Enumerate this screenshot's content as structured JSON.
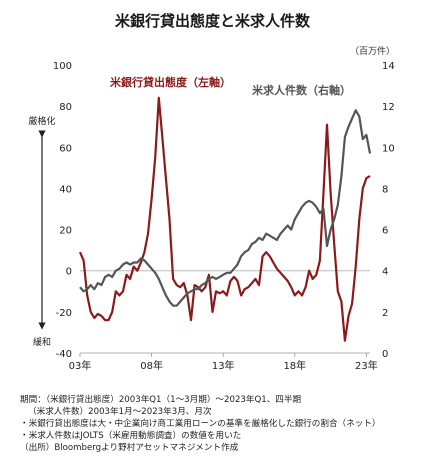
{
  "title": "米銀行貸出態度と米求人件数",
  "unit_right": "（百万件）",
  "axis_notes": {
    "strict": "厳格化",
    "loose": "緩和"
  },
  "chart_data": {
    "type": "line",
    "x_unit": "year",
    "x_ticks": [
      {
        "year": 2003,
        "label": "03年"
      },
      {
        "year": 2008,
        "label": "08年"
      },
      {
        "year": 2013,
        "label": "13年"
      },
      {
        "year": 2018,
        "label": "18年"
      },
      {
        "year": 2023,
        "label": "23年"
      }
    ],
    "xlim": [
      2003,
      2023.25
    ],
    "y_left": {
      "ylim": [
        -40,
        100
      ],
      "ticks": [
        -40,
        -20,
        0,
        20,
        40,
        60,
        80,
        100
      ]
    },
    "y_right": {
      "ylim": [
        0,
        14
      ],
      "ticks": [
        0,
        2,
        4,
        6,
        8,
        10,
        12,
        14
      ]
    },
    "grid": false,
    "series": [
      {
        "name": "米銀行貸出態度（左軸）",
        "axis": "left",
        "color": "#8b1a1a",
        "points": [
          [
            2003.0,
            9
          ],
          [
            2003.25,
            5
          ],
          [
            2003.5,
            -12
          ],
          [
            2003.75,
            -20
          ],
          [
            2004.0,
            -23
          ],
          [
            2004.25,
            -21
          ],
          [
            2004.5,
            -22
          ],
          [
            2004.75,
            -24
          ],
          [
            2005.0,
            -24
          ],
          [
            2005.25,
            -20
          ],
          [
            2005.5,
            -10
          ],
          [
            2005.75,
            -12
          ],
          [
            2006.0,
            -10
          ],
          [
            2006.25,
            -2
          ],
          [
            2006.5,
            -4
          ],
          [
            2006.75,
            2
          ],
          [
            2007.0,
            0
          ],
          [
            2007.25,
            4
          ],
          [
            2007.5,
            9
          ],
          [
            2007.75,
            18
          ],
          [
            2008.0,
            35
          ],
          [
            2008.25,
            55
          ],
          [
            2008.5,
            84
          ],
          [
            2008.75,
            65
          ],
          [
            2009.0,
            45
          ],
          [
            2009.25,
            25
          ],
          [
            2009.5,
            -4
          ],
          [
            2009.75,
            -7
          ],
          [
            2010.0,
            -8
          ],
          [
            2010.25,
            -6
          ],
          [
            2010.5,
            -12
          ],
          [
            2010.75,
            -24
          ],
          [
            2011.0,
            -7
          ],
          [
            2011.25,
            -8
          ],
          [
            2011.5,
            -10
          ],
          [
            2011.75,
            -8
          ],
          [
            2012.0,
            -2
          ],
          [
            2012.25,
            -20
          ],
          [
            2012.5,
            -10
          ],
          [
            2012.75,
            -11
          ],
          [
            2013.0,
            -10
          ],
          [
            2013.25,
            -12
          ],
          [
            2013.5,
            -5
          ],
          [
            2013.75,
            -3
          ],
          [
            2014.0,
            -5
          ],
          [
            2014.25,
            -12
          ],
          [
            2014.5,
            -9
          ],
          [
            2014.75,
            -8
          ],
          [
            2015.0,
            -6
          ],
          [
            2015.25,
            -4
          ],
          [
            2015.5,
            -7
          ],
          [
            2015.75,
            7
          ],
          [
            2016.0,
            9
          ],
          [
            2016.25,
            7
          ],
          [
            2016.5,
            4
          ],
          [
            2016.75,
            1
          ],
          [
            2017.0,
            -1
          ],
          [
            2017.25,
            -3
          ],
          [
            2017.5,
            -5
          ],
          [
            2017.75,
            -8
          ],
          [
            2018.0,
            -12
          ],
          [
            2018.25,
            -10
          ],
          [
            2018.5,
            -12
          ],
          [
            2018.75,
            -8
          ],
          [
            2019.0,
            0
          ],
          [
            2019.25,
            -4
          ],
          [
            2019.5,
            -2
          ],
          [
            2019.75,
            5
          ],
          [
            2020.0,
            38
          ],
          [
            2020.25,
            71
          ],
          [
            2020.5,
            38
          ],
          [
            2020.75,
            13
          ],
          [
            2021.0,
            -10
          ],
          [
            2021.25,
            -15
          ],
          [
            2021.5,
            -34
          ],
          [
            2021.75,
            -22
          ],
          [
            2022.0,
            -16
          ],
          [
            2022.25,
            2
          ],
          [
            2022.5,
            25
          ],
          [
            2022.75,
            40
          ],
          [
            2023.0,
            45
          ],
          [
            2023.25,
            46
          ]
        ]
      },
      {
        "name": "米求人件数（右軸）",
        "axis": "right",
        "color": "#555555",
        "points": [
          [
            2003.0,
            3.2
          ],
          [
            2003.25,
            3.0
          ],
          [
            2003.5,
            3.1
          ],
          [
            2003.75,
            3.3
          ],
          [
            2004.0,
            3.1
          ],
          [
            2004.25,
            3.4
          ],
          [
            2004.5,
            3.3
          ],
          [
            2004.75,
            3.7
          ],
          [
            2005.0,
            3.8
          ],
          [
            2005.25,
            3.7
          ],
          [
            2005.5,
            4.0
          ],
          [
            2005.75,
            4.1
          ],
          [
            2006.0,
            4.3
          ],
          [
            2006.25,
            4.4
          ],
          [
            2006.5,
            4.3
          ],
          [
            2006.75,
            4.4
          ],
          [
            2007.0,
            4.4
          ],
          [
            2007.25,
            4.6
          ],
          [
            2007.5,
            4.5
          ],
          [
            2007.75,
            4.3
          ],
          [
            2008.0,
            4.1
          ],
          [
            2008.25,
            3.9
          ],
          [
            2008.5,
            3.6
          ],
          [
            2008.75,
            3.2
          ],
          [
            2009.0,
            2.8
          ],
          [
            2009.25,
            2.5
          ],
          [
            2009.5,
            2.3
          ],
          [
            2009.75,
            2.3
          ],
          [
            2010.0,
            2.5
          ],
          [
            2010.25,
            2.7
          ],
          [
            2010.5,
            2.9
          ],
          [
            2010.75,
            3.0
          ],
          [
            2011.0,
            3.1
          ],
          [
            2011.25,
            3.1
          ],
          [
            2011.5,
            3.3
          ],
          [
            2011.75,
            3.4
          ],
          [
            2012.0,
            3.6
          ],
          [
            2012.25,
            3.7
          ],
          [
            2012.5,
            3.6
          ],
          [
            2012.75,
            3.7
          ],
          [
            2013.0,
            3.8
          ],
          [
            2013.25,
            3.9
          ],
          [
            2013.5,
            3.9
          ],
          [
            2013.75,
            4.1
          ],
          [
            2014.0,
            4.3
          ],
          [
            2014.25,
            4.7
          ],
          [
            2014.5,
            4.9
          ],
          [
            2014.75,
            5.0
          ],
          [
            2015.0,
            5.3
          ],
          [
            2015.25,
            5.4
          ],
          [
            2015.5,
            5.6
          ],
          [
            2015.75,
            5.5
          ],
          [
            2016.0,
            5.8
          ],
          [
            2016.25,
            5.7
          ],
          [
            2016.5,
            5.6
          ],
          [
            2016.75,
            5.5
          ],
          [
            2017.0,
            5.8
          ],
          [
            2017.25,
            6.0
          ],
          [
            2017.5,
            6.2
          ],
          [
            2017.75,
            6.0
          ],
          [
            2018.0,
            6.5
          ],
          [
            2018.25,
            6.8
          ],
          [
            2018.5,
            7.1
          ],
          [
            2018.75,
            7.3
          ],
          [
            2019.0,
            7.4
          ],
          [
            2019.25,
            7.3
          ],
          [
            2019.5,
            7.1
          ],
          [
            2019.75,
            6.8
          ],
          [
            2020.0,
            7.0
          ],
          [
            2020.25,
            5.2
          ],
          [
            2020.5,
            6.0
          ],
          [
            2020.75,
            6.5
          ],
          [
            2021.0,
            7.2
          ],
          [
            2021.25,
            8.6
          ],
          [
            2021.5,
            10.5
          ],
          [
            2021.75,
            11.0
          ],
          [
            2022.0,
            11.4
          ],
          [
            2022.25,
            11.8
          ],
          [
            2022.5,
            11.5
          ],
          [
            2022.75,
            10.4
          ],
          [
            2023.0,
            10.6
          ],
          [
            2023.25,
            9.7
          ]
        ]
      }
    ],
    "annotations": [
      {
        "text": "米銀行貸出態度（左軸）",
        "color": "#8b1a1a"
      },
      {
        "text": "米求人件数（右軸）",
        "color": "#555555"
      }
    ]
  },
  "notes": [
    "期間：（米銀行貸出態度）2003年Q1（1～3月期）～2023年Q1、四半期",
    "（米求人件数）2003年1月～2023年3月、月次",
    "・米銀行貸出態度は大・中企業向け商工業用ローンの基準を厳格化した銀行の割合（ネット）",
    "・米求人件数はJOLTS（米雇用動態調査）の数値を用いた",
    "（出所）Bloombergより野村アセットマネジメント作成"
  ]
}
